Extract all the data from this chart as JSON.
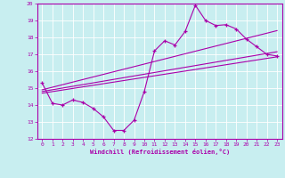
{
  "title": "",
  "xlabel": "Windchill (Refroidissement éolien,°C)",
  "ylabel": "",
  "bg_color": "#c8eef0",
  "line_color": "#aa00aa",
  "xlim": [
    -0.5,
    23.5
  ],
  "ylim": [
    12,
    20
  ],
  "yticks": [
    12,
    13,
    14,
    15,
    16,
    17,
    18,
    19,
    20
  ],
  "xticks": [
    0,
    1,
    2,
    3,
    4,
    5,
    6,
    7,
    8,
    9,
    10,
    11,
    12,
    13,
    14,
    15,
    16,
    17,
    18,
    19,
    20,
    21,
    22,
    23
  ],
  "main_line": {
    "x": [
      0,
      1,
      2,
      3,
      4,
      5,
      6,
      7,
      8,
      9,
      10,
      11,
      12,
      13,
      14,
      15,
      16,
      17,
      18,
      19,
      20,
      21,
      22,
      23
    ],
    "y": [
      15.3,
      14.1,
      14.0,
      14.3,
      14.15,
      13.8,
      13.3,
      12.5,
      12.5,
      13.1,
      14.8,
      17.2,
      17.8,
      17.55,
      18.35,
      19.9,
      19.0,
      18.7,
      18.75,
      18.5,
      17.9,
      17.45,
      17.0,
      16.9
    ]
  },
  "trend_lines": [
    {
      "x": [
        0,
        23
      ],
      "y": [
        14.9,
        18.4
      ]
    },
    {
      "x": [
        0,
        23
      ],
      "y": [
        14.8,
        17.15
      ]
    },
    {
      "x": [
        0,
        23
      ],
      "y": [
        14.7,
        16.85
      ]
    }
  ]
}
